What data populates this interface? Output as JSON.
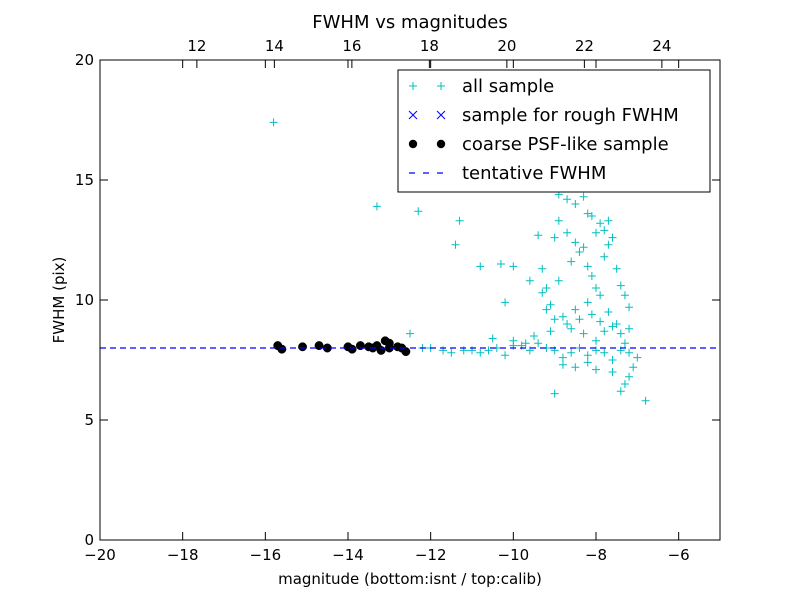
{
  "chart_data": {
    "type": "scatter",
    "title": "FWHM vs magnitudes",
    "xlabel": "magnitude (bottom:isnt / top:calib)",
    "ylabel": "FWHM (pix)",
    "xlim": [
      -20,
      -5
    ],
    "ylim": [
      0,
      20
    ],
    "x_ticks": [
      -20,
      -18,
      -16,
      -14,
      -12,
      -10,
      -8,
      -6
    ],
    "x_tick_labels": [
      "−20",
      "−18",
      "−16",
      "−14",
      "−12",
      "−10",
      "−8",
      "−6"
    ],
    "y_ticks": [
      0,
      5,
      10,
      15,
      20
    ],
    "y_tick_labels": [
      "0",
      "5",
      "10",
      "15",
      "20"
    ],
    "top_axis": {
      "lim": [
        9.5,
        25.5
      ],
      "ticks": [
        12,
        14,
        16,
        18,
        20,
        22,
        24
      ],
      "tick_labels": [
        "12",
        "14",
        "16",
        "18",
        "20",
        "22",
        "24"
      ]
    },
    "grid": false,
    "legend_position": "top-right",
    "series": [
      {
        "name": "all sample",
        "marker": "plus",
        "color": "#00bfbf",
        "points": [
          [
            -15.8,
            17.4
          ],
          [
            -13.3,
            13.9
          ],
          [
            -12.3,
            13.7
          ],
          [
            -11.3,
            13.3
          ],
          [
            -11.4,
            12.3
          ],
          [
            -10.8,
            11.4
          ],
          [
            -10.3,
            11.5
          ],
          [
            -10.0,
            11.4
          ],
          [
            -10.2,
            9.9
          ],
          [
            -9.6,
            10.8
          ],
          [
            -9.2,
            9.6
          ],
          [
            -9.5,
            8.5
          ],
          [
            -9.1,
            8.7
          ],
          [
            -9.0,
            9.2
          ],
          [
            -9.3,
            10.3
          ],
          [
            -12.5,
            8.6
          ],
          [
            -12.2,
            8.0
          ],
          [
            -12.0,
            8.0
          ],
          [
            -11.7,
            7.9
          ],
          [
            -11.5,
            7.8
          ],
          [
            -11.2,
            7.9
          ],
          [
            -11.0,
            7.9
          ],
          [
            -10.8,
            7.8
          ],
          [
            -10.6,
            7.9
          ],
          [
            -10.4,
            8.0
          ],
          [
            -10.2,
            7.7
          ],
          [
            -10.0,
            8.1
          ],
          [
            -9.8,
            8.1
          ],
          [
            -9.6,
            7.9
          ],
          [
            -9.4,
            8.2
          ],
          [
            -9.2,
            8.0
          ],
          [
            -9.0,
            7.9
          ],
          [
            -8.8,
            7.6
          ],
          [
            -8.6,
            7.8
          ],
          [
            -8.4,
            8.0
          ],
          [
            -8.2,
            7.7
          ],
          [
            -8.0,
            7.9
          ],
          [
            -7.8,
            7.8
          ],
          [
            -7.6,
            7.5
          ],
          [
            -7.4,
            7.9
          ],
          [
            -7.2,
            7.8
          ],
          [
            -7.0,
            7.6
          ],
          [
            -10.5,
            8.4
          ],
          [
            -10.0,
            8.3
          ],
          [
            -9.7,
            8.2
          ],
          [
            -9.0,
            12.6
          ],
          [
            -8.9,
            13.3
          ],
          [
            -8.7,
            12.8
          ],
          [
            -8.6,
            11.6
          ],
          [
            -8.5,
            12.4
          ],
          [
            -8.4,
            12.0
          ],
          [
            -8.3,
            12.2
          ],
          [
            -8.2,
            11.4
          ],
          [
            -8.1,
            11.0
          ],
          [
            -8.0,
            10.5
          ],
          [
            -7.9,
            10.2
          ],
          [
            -7.8,
            11.8
          ],
          [
            -7.7,
            12.3
          ],
          [
            -7.6,
            12.6
          ],
          [
            -7.5,
            11.3
          ],
          [
            -7.4,
            10.6
          ],
          [
            -7.3,
            10.2
          ],
          [
            -7.2,
            9.7
          ],
          [
            -9.4,
            12.7
          ],
          [
            -9.3,
            11.3
          ],
          [
            -9.2,
            10.5
          ],
          [
            -9.1,
            9.8
          ],
          [
            -8.9,
            10.8
          ],
          [
            -8.8,
            9.3
          ],
          [
            -8.7,
            9.0
          ],
          [
            -8.6,
            8.8
          ],
          [
            -8.5,
            9.6
          ],
          [
            -8.4,
            9.2
          ],
          [
            -8.3,
            8.6
          ],
          [
            -8.2,
            9.9
          ],
          [
            -8.1,
            9.4
          ],
          [
            -8.0,
            8.3
          ],
          [
            -7.9,
            9.1
          ],
          [
            -7.8,
            8.7
          ],
          [
            -7.7,
            9.5
          ],
          [
            -7.6,
            8.9
          ],
          [
            -7.5,
            9.0
          ],
          [
            -7.4,
            8.6
          ],
          [
            -7.3,
            8.2
          ],
          [
            -7.2,
            8.8
          ],
          [
            -8.9,
            14.4
          ],
          [
            -8.7,
            14.2
          ],
          [
            -8.5,
            14.0
          ],
          [
            -8.3,
            14.3
          ],
          [
            -8.1,
            13.5
          ],
          [
            -7.9,
            13.2
          ],
          [
            -7.7,
            13.3
          ],
          [
            -8.0,
            12.8
          ],
          [
            -7.8,
            12.9
          ],
          [
            -8.2,
            13.6
          ],
          [
            -8.8,
            7.3
          ],
          [
            -8.5,
            7.2
          ],
          [
            -8.2,
            7.4
          ],
          [
            -8.0,
            7.1
          ],
          [
            -7.6,
            7.0
          ],
          [
            -7.3,
            6.5
          ],
          [
            -7.4,
            6.2
          ],
          [
            -7.2,
            6.8
          ],
          [
            -7.1,
            7.2
          ],
          [
            -9.0,
            6.1
          ],
          [
            -6.8,
            5.8
          ]
        ]
      },
      {
        "name": "sample for rough FWHM",
        "marker": "x",
        "color": "#0000ff",
        "points": []
      },
      {
        "name": "coarse PSF-like sample",
        "marker": "circle",
        "color": "#000000",
        "points": [
          [
            -15.7,
            8.1
          ],
          [
            -15.6,
            7.95
          ],
          [
            -15.1,
            8.05
          ],
          [
            -14.7,
            8.1
          ],
          [
            -14.5,
            8.0
          ],
          [
            -14.0,
            8.05
          ],
          [
            -13.9,
            7.95
          ],
          [
            -13.7,
            8.1
          ],
          [
            -13.5,
            8.05
          ],
          [
            -13.4,
            8.0
          ],
          [
            -13.3,
            8.1
          ],
          [
            -13.2,
            7.9
          ],
          [
            -13.0,
            8.2
          ],
          [
            -13.0,
            8.0
          ],
          [
            -12.8,
            8.05
          ],
          [
            -12.7,
            8.0
          ],
          [
            -12.6,
            7.85
          ],
          [
            -13.1,
            8.3
          ]
        ]
      },
      {
        "name": "tentative FWHM",
        "marker": "dashed-line",
        "color": "#0000ff",
        "y_value": 8.0
      }
    ]
  }
}
